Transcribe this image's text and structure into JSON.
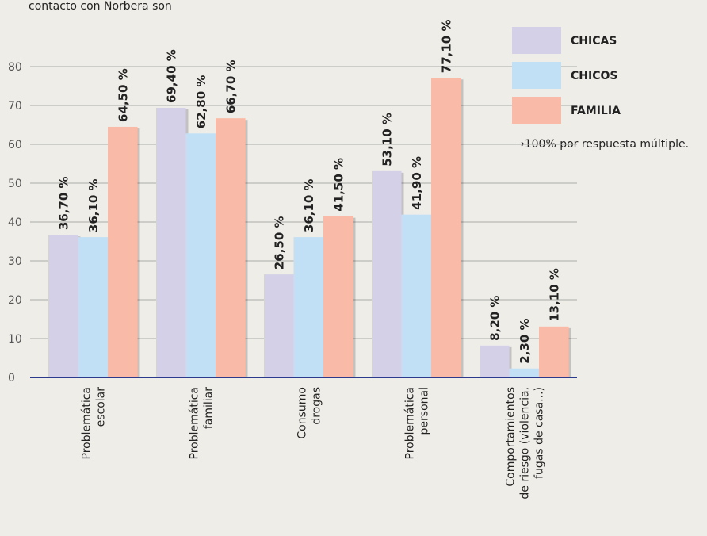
{
  "chart_data": {
    "type": "bar",
    "title": "contacto con Norbera son",
    "note": "→100% por respuesta múltiple.",
    "categories": [
      [
        "Problemática",
        "escolar"
      ],
      [
        "Problemática",
        "familiar"
      ],
      [
        "Consumo",
        "drogas"
      ],
      [
        "Problemática",
        "personal"
      ],
      [
        "Comportamientos",
        "de riesgo (violencia,",
        "fugas de casa...)"
      ]
    ],
    "series": [
      {
        "name": "CHICAS",
        "color": "#d4d0e7",
        "values": [
          36.7,
          69.4,
          26.5,
          53.1,
          8.2
        ],
        "value_labels": [
          "36,70 %",
          "69,40 %",
          "26,50 %",
          "53,10 %",
          "8,20 %"
        ]
      },
      {
        "name": "CHICOS",
        "color": "#c2e0f5",
        "values": [
          36.1,
          62.8,
          36.1,
          41.9,
          2.3
        ],
        "value_labels": [
          "36,10 %",
          "62,80 %",
          "36,10 %",
          "41,90 %",
          "2,30 %"
        ]
      },
      {
        "name": "FAMILIA",
        "color": "#f9bba7",
        "values": [
          64.5,
          66.7,
          41.5,
          77.1,
          13.1
        ],
        "value_labels": [
          "64,50 %",
          "66,70 %",
          "41,50 %",
          "77,10 %",
          "13,10 %"
        ]
      }
    ],
    "ylim": [
      0,
      80
    ],
    "yticks": [
      0,
      10,
      20,
      30,
      40,
      50,
      60,
      70,
      80
    ],
    "grid": true,
    "legend": "top-right"
  }
}
